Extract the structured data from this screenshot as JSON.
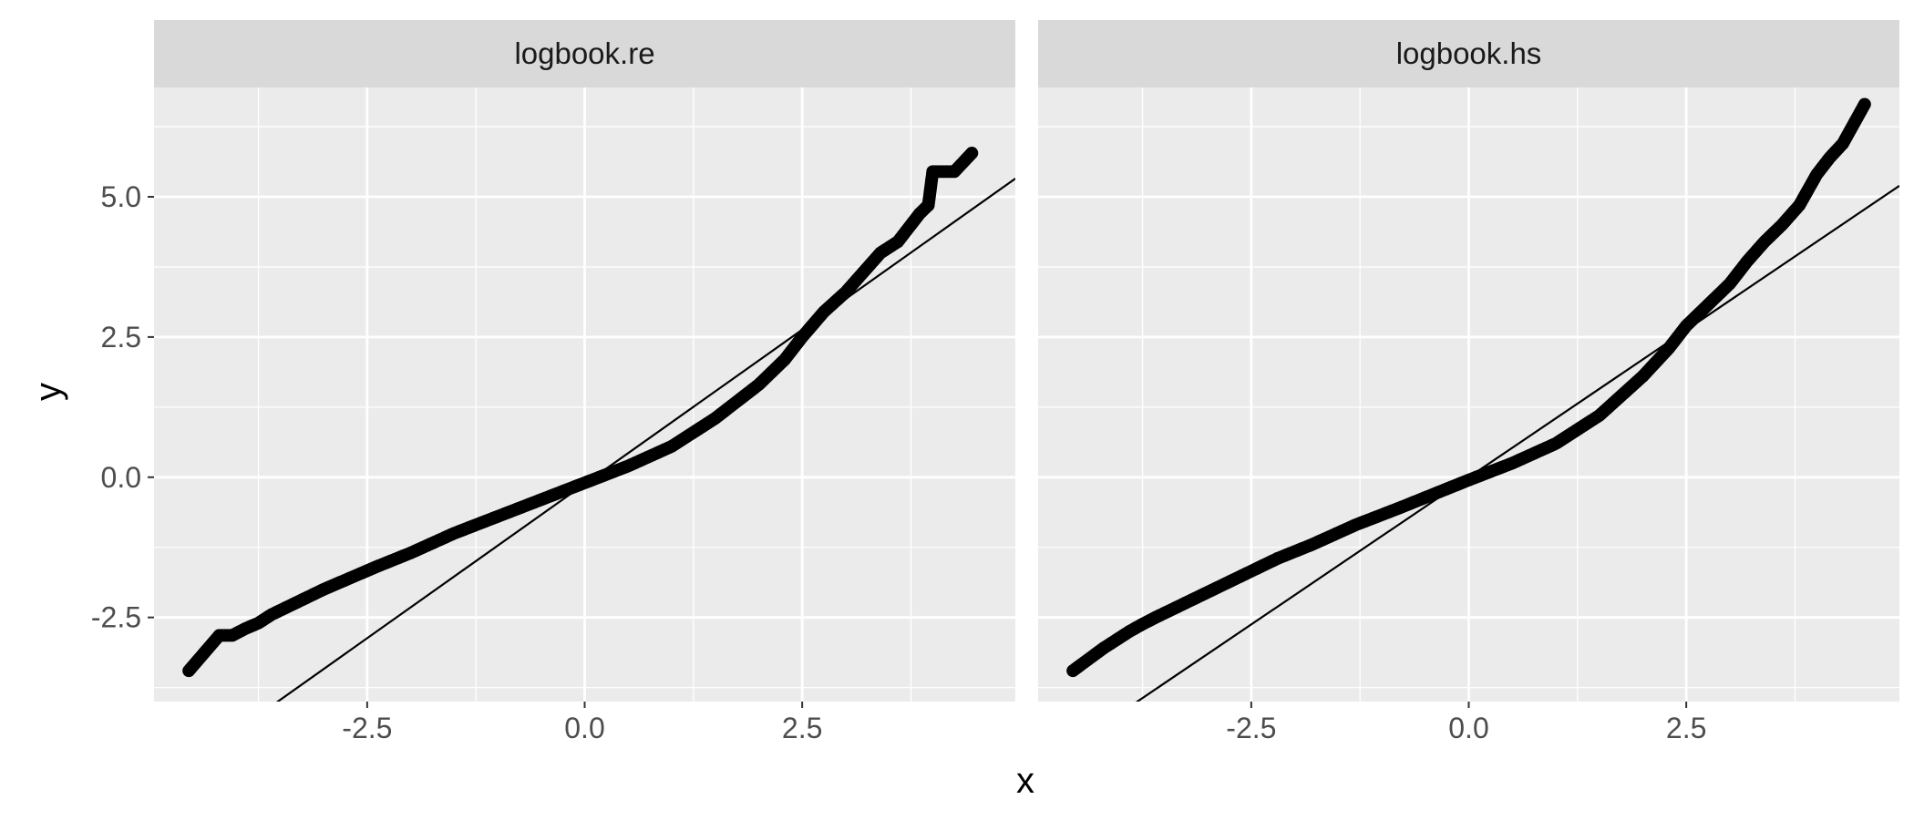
{
  "chart_data": {
    "type": "scatter",
    "title": "",
    "xlabel": "x",
    "ylabel": "y",
    "xlim": [
      -4.95,
      4.95
    ],
    "ylim": [
      -4.0,
      6.95
    ],
    "x_ticks": [
      -2.5,
      0.0,
      2.5
    ],
    "x_tick_labels": [
      "-2.5",
      "0.0",
      "2.5"
    ],
    "y_ticks": [
      -2.5,
      0.0,
      2.5,
      5.0
    ],
    "y_tick_labels": [
      "-2.5",
      "0.0",
      "2.5",
      "5.0"
    ],
    "grid": true,
    "legend": "none",
    "colors": {
      "panel_bg": "#ebebeb",
      "strip_bg": "#d9d9d9",
      "grid": "#ffffff",
      "points": "#000000",
      "line": "#000000"
    },
    "panels": [
      {
        "name": "logbook.re",
        "reference_line": {
          "slope": 1.1,
          "intercept": -0.12
        },
        "points": [
          [
            -4.55,
            -3.45
          ],
          [
            -4.2,
            -2.82
          ],
          [
            -4.05,
            -2.82
          ],
          [
            -3.9,
            -2.7
          ],
          [
            -3.75,
            -2.6
          ],
          [
            -3.6,
            -2.45
          ],
          [
            -3.4,
            -2.3
          ],
          [
            -3.2,
            -2.15
          ],
          [
            -3.0,
            -2.0
          ],
          [
            -2.7,
            -1.8
          ],
          [
            -2.4,
            -1.6
          ],
          [
            -2.0,
            -1.35
          ],
          [
            -1.5,
            -1.0
          ],
          [
            -1.0,
            -0.7
          ],
          [
            -0.5,
            -0.4
          ],
          [
            0.0,
            -0.1
          ],
          [
            0.5,
            0.2
          ],
          [
            1.0,
            0.55
          ],
          [
            1.5,
            1.05
          ],
          [
            2.0,
            1.65
          ],
          [
            2.3,
            2.1
          ],
          [
            2.5,
            2.5
          ],
          [
            2.75,
            2.95
          ],
          [
            3.0,
            3.3
          ],
          [
            3.2,
            3.65
          ],
          [
            3.4,
            4.0
          ],
          [
            3.6,
            4.2
          ],
          [
            3.75,
            4.5
          ],
          [
            3.85,
            4.7
          ],
          [
            3.95,
            4.85
          ],
          [
            4.0,
            5.45
          ],
          [
            4.25,
            5.45
          ],
          [
            4.45,
            5.78
          ]
        ]
      },
      {
        "name": "logbook.hs",
        "reference_line": {
          "slope": 1.05,
          "intercept": 0.0
        },
        "points": [
          [
            -4.55,
            -3.45
          ],
          [
            -4.2,
            -3.05
          ],
          [
            -4.05,
            -2.9
          ],
          [
            -3.9,
            -2.75
          ],
          [
            -3.75,
            -2.62
          ],
          [
            -3.6,
            -2.5
          ],
          [
            -3.4,
            -2.35
          ],
          [
            -3.2,
            -2.2
          ],
          [
            -3.0,
            -2.05
          ],
          [
            -2.6,
            -1.75
          ],
          [
            -2.2,
            -1.45
          ],
          [
            -1.8,
            -1.2
          ],
          [
            -1.3,
            -0.85
          ],
          [
            -0.8,
            -0.55
          ],
          [
            -0.4,
            -0.3
          ],
          [
            0.0,
            -0.05
          ],
          [
            0.5,
            0.25
          ],
          [
            1.0,
            0.6
          ],
          [
            1.5,
            1.1
          ],
          [
            2.0,
            1.8
          ],
          [
            2.3,
            2.3
          ],
          [
            2.5,
            2.7
          ],
          [
            2.8,
            3.15
          ],
          [
            3.0,
            3.45
          ],
          [
            3.2,
            3.85
          ],
          [
            3.4,
            4.2
          ],
          [
            3.6,
            4.5
          ],
          [
            3.8,
            4.85
          ],
          [
            4.0,
            5.4
          ],
          [
            4.15,
            5.7
          ],
          [
            4.3,
            5.95
          ],
          [
            4.55,
            6.65
          ]
        ]
      }
    ]
  }
}
